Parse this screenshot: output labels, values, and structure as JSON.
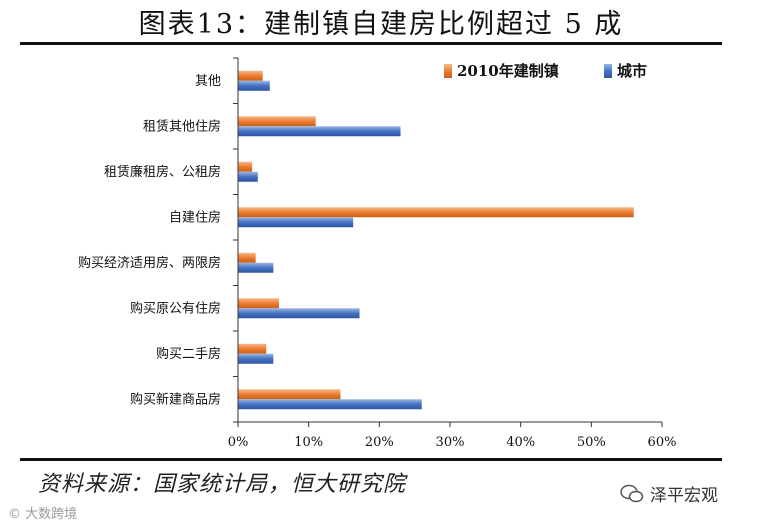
{
  "title": "图表13：建制镇自建房比例超过 5 成",
  "source": "资料来源：国家统计局，恒大研究院",
  "wechat_account": "泽平宏观",
  "watermark": "大数跨境",
  "colors": {
    "town": "#ED7D31",
    "city": "#4472C4"
  },
  "chart_data": {
    "type": "bar",
    "orientation": "horizontal",
    "categories": [
      "其他",
      "租赁其他住房",
      "租赁廉租房、公租房",
      "自建住房",
      "购买经济适用房、两限房",
      "购买原公有住房",
      "购买二手房",
      "购买新建商品房"
    ],
    "series": [
      {
        "name": "2010年建制镇",
        "values": [
          3.5,
          11.0,
          2.0,
          56.0,
          2.5,
          5.8,
          4.0,
          14.5
        ]
      },
      {
        "name": "城市",
        "values": [
          4.5,
          23.0,
          2.8,
          16.3,
          5.0,
          17.2,
          5.0,
          26.0
        ]
      }
    ],
    "xlim": [
      0,
      60
    ],
    "xticks": [
      "0%",
      "10%",
      "20%",
      "30%",
      "40%",
      "50%",
      "60%"
    ],
    "legend_position": "top-right",
    "grid": false
  }
}
